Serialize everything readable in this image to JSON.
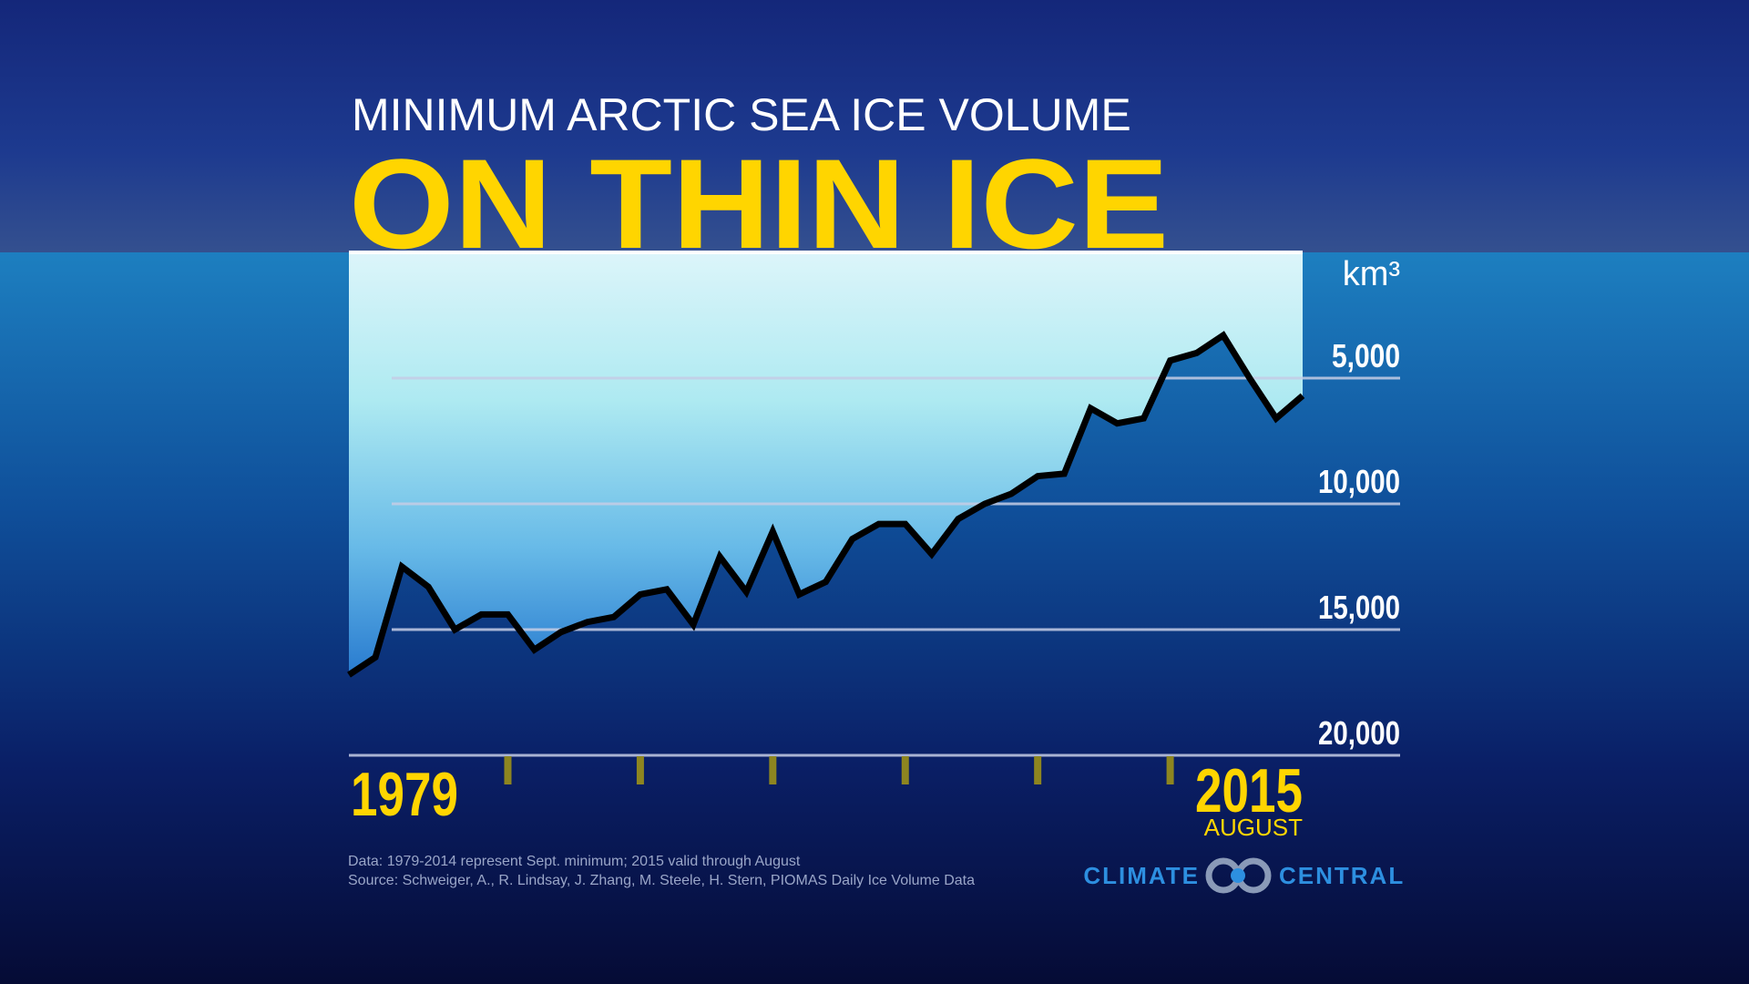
{
  "chart_data": {
    "type": "line",
    "title": "MINIMUM ARCTIC SEA ICE VOLUME",
    "headline": "ON THIN ICE",
    "y_unit": "km³",
    "x": [
      1979,
      1980,
      1981,
      1982,
      1983,
      1984,
      1985,
      1986,
      1987,
      1988,
      1989,
      1990,
      1991,
      1992,
      1993,
      1994,
      1995,
      1996,
      1997,
      1998,
      1999,
      2000,
      2001,
      2002,
      2003,
      2004,
      2005,
      2006,
      2007,
      2008,
      2009,
      2010,
      2011,
      2012,
      2013,
      2014,
      2015
    ],
    "values": [
      16800,
      16100,
      12500,
      13300,
      15000,
      14400,
      14400,
      15800,
      15100,
      14700,
      14500,
      13600,
      13400,
      14800,
      12100,
      13500,
      11100,
      13600,
      13100,
      11400,
      10800,
      10800,
      12000,
      10600,
      10000,
      9600,
      8900,
      8800,
      6200,
      6800,
      6600,
      4300,
      4000,
      3300,
      5000,
      6600,
      5700
    ],
    "color": "#000000",
    "fill_color": "#bff4f8",
    "xlim": [
      1979,
      2015
    ],
    "xticks": [
      {
        "value": 1979,
        "label": "1979"
      },
      {
        "value": 1985,
        "label": null
      },
      {
        "value": 1990,
        "label": null
      },
      {
        "value": 1995,
        "label": null
      },
      {
        "value": 2000,
        "label": null
      },
      {
        "value": 2005,
        "label": null
      },
      {
        "value": 2010,
        "label": null
      },
      {
        "value": 2015,
        "label": "2015"
      }
    ],
    "x_end_note": "AUGUST",
    "ylim": [
      0,
      20000
    ],
    "y_inverted": true,
    "yticks": [
      {
        "value": 5000,
        "label": "5,000"
      },
      {
        "value": 10000,
        "label": "10,000"
      },
      {
        "value": 15000,
        "label": "15,000"
      },
      {
        "value": 20000,
        "label": "20,000"
      }
    ],
    "grid": true,
    "notes": [
      "Data: 1979-2014 represent Sept. minimum; 2015 valid through August",
      "Source: Schweiger, A., R. Lindsay, J. Zhang, M. Steele, H. Stern, PIOMAS Daily Ice Volume Data"
    ],
    "logo": {
      "left": "CLIMATE",
      "right": "CENTRAL"
    }
  }
}
